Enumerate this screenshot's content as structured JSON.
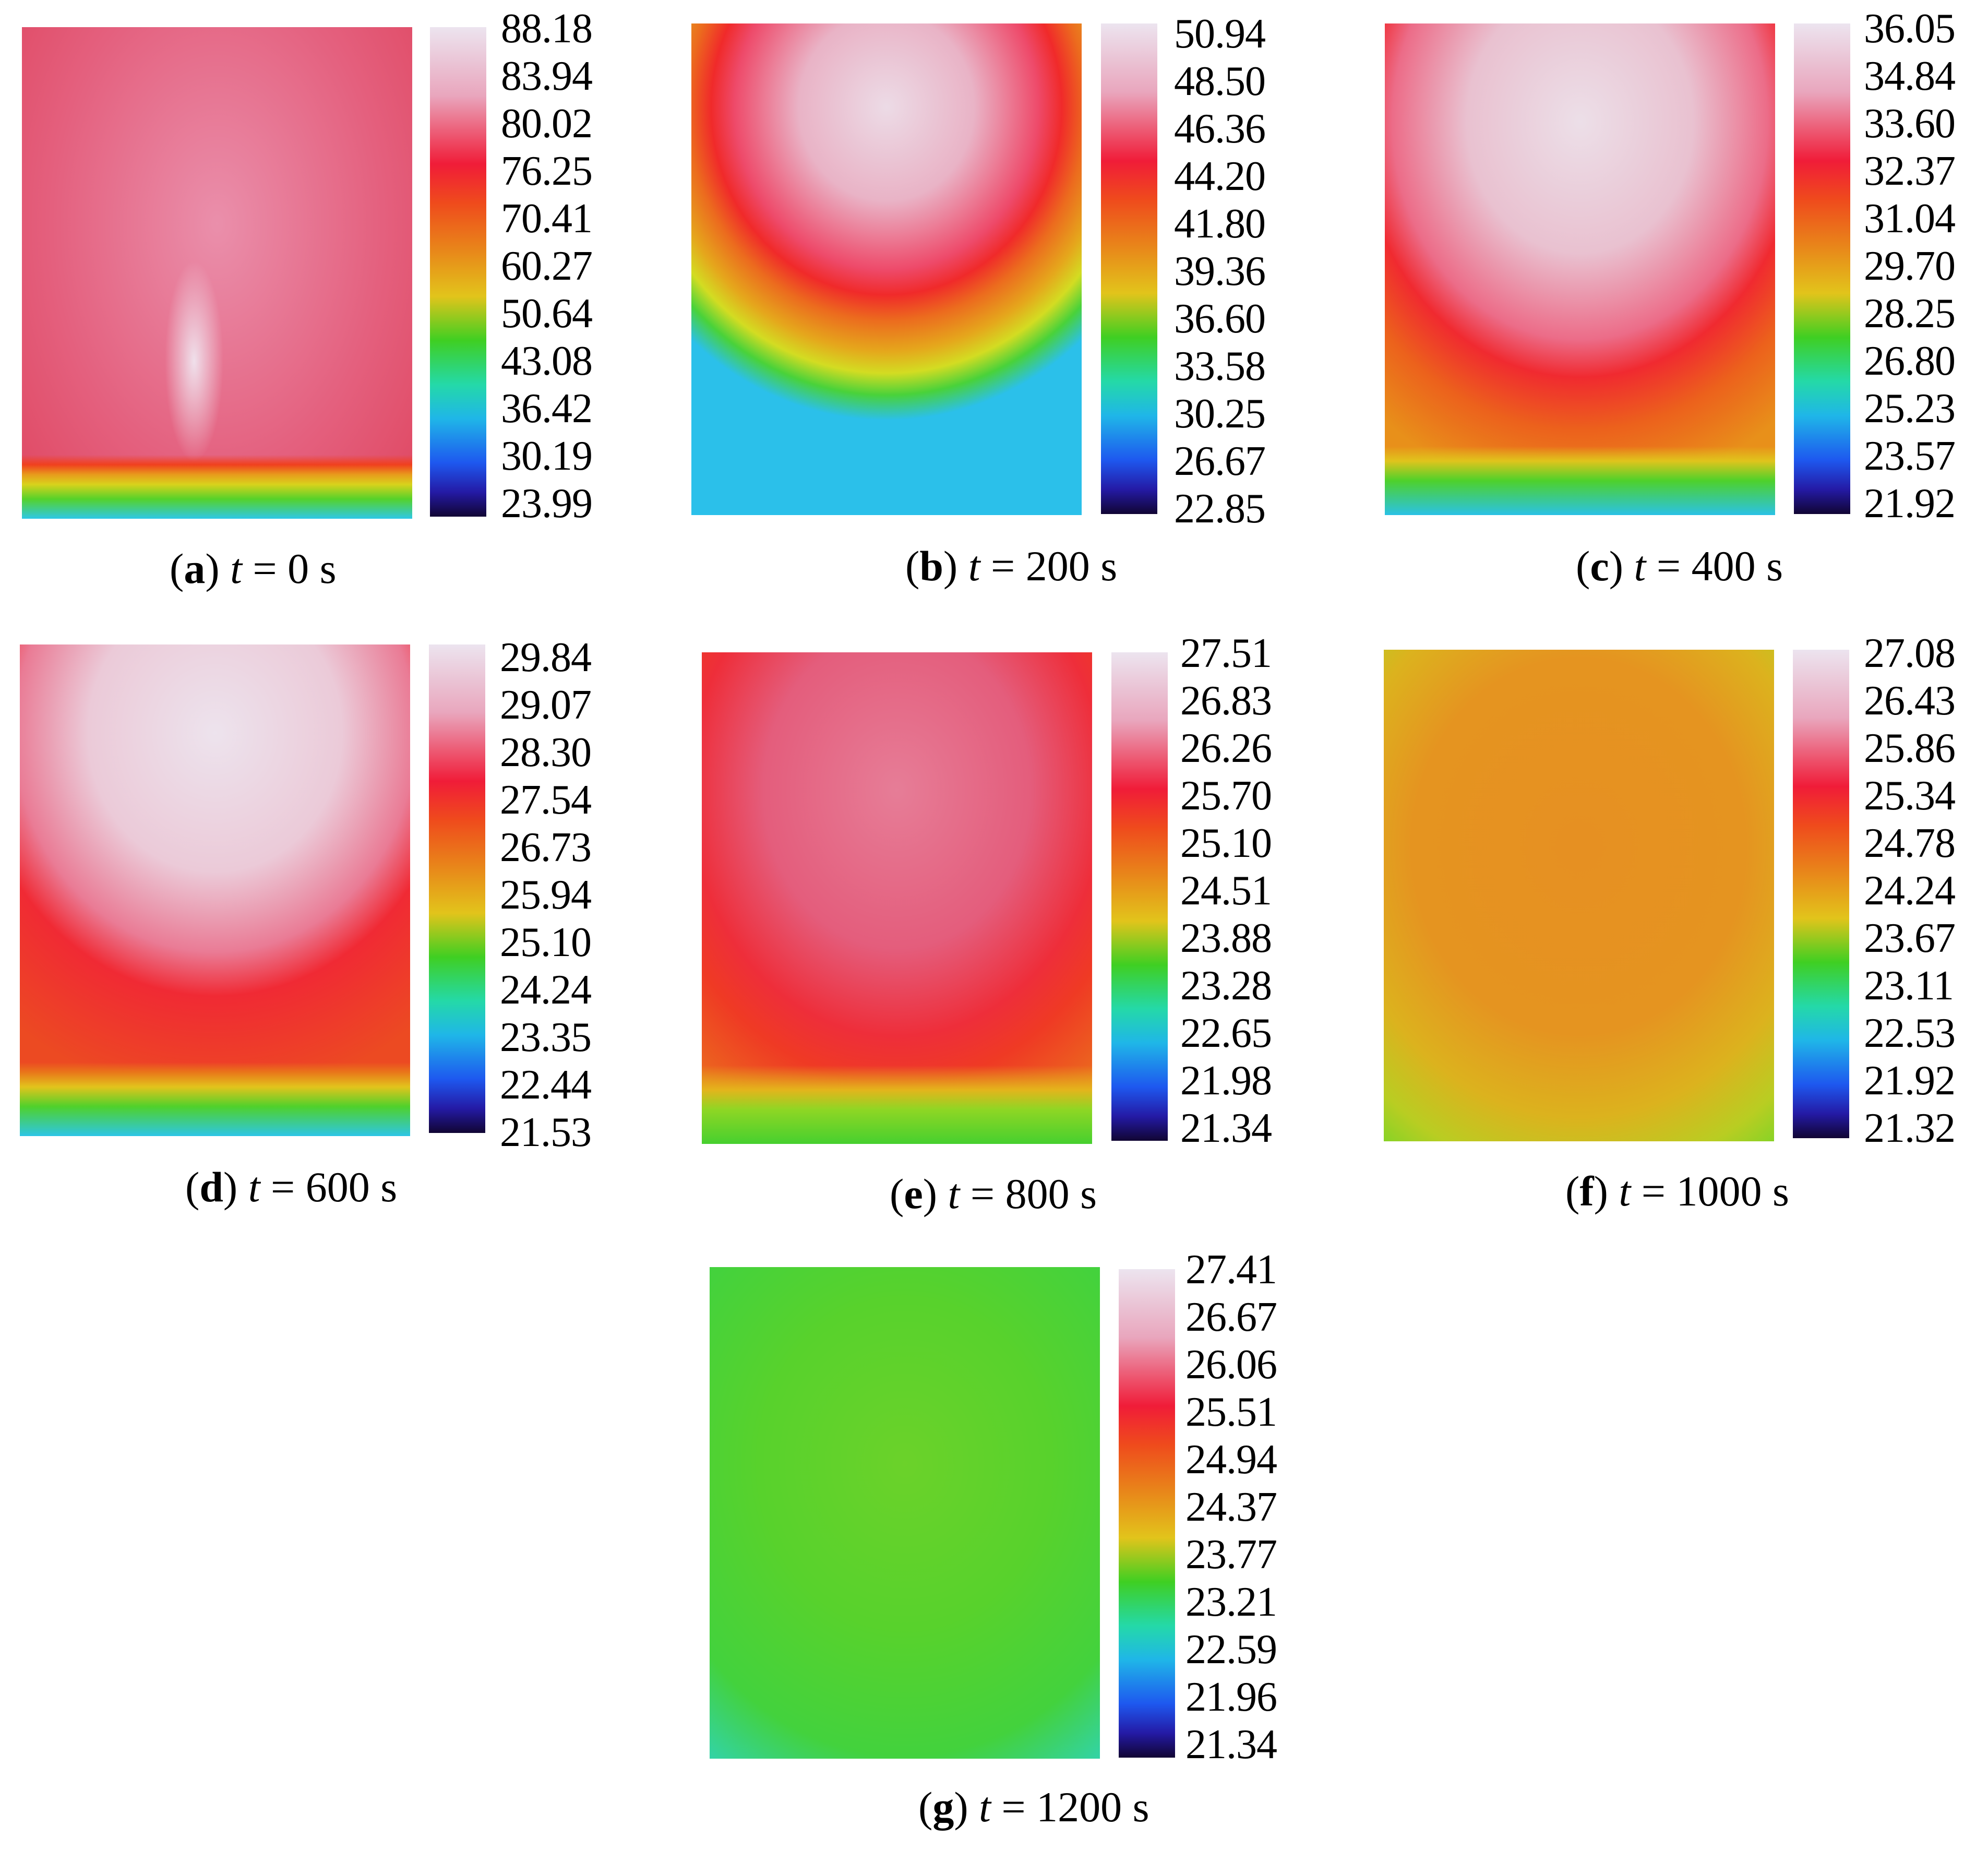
{
  "panels": [
    {
      "id": "a",
      "letter": "a",
      "time": "0",
      "scale": [
        "88.18",
        "83.94",
        "80.02",
        "76.25",
        "70.41",
        "60.27",
        "50.64",
        "43.08",
        "36.42",
        "30.19",
        "23.99"
      ]
    },
    {
      "id": "b",
      "letter": "b",
      "time": "200",
      "scale": [
        "50.94",
        "48.50",
        "46.36",
        "44.20",
        "41.80",
        "39.36",
        "36.60",
        "33.58",
        "30.25",
        "26.67",
        "22.85"
      ]
    },
    {
      "id": "c",
      "letter": "c",
      "time": "400",
      "scale": [
        "36.05",
        "34.84",
        "33.60",
        "32.37",
        "31.04",
        "29.70",
        "28.25",
        "26.80",
        "25.23",
        "23.57",
        "21.92"
      ]
    },
    {
      "id": "d",
      "letter": "d",
      "time": "600",
      "scale": [
        "29.84",
        "29.07",
        "28.30",
        "27.54",
        "26.73",
        "25.94",
        "25.10",
        "24.24",
        "23.35",
        "22.44",
        "21.53"
      ]
    },
    {
      "id": "e",
      "letter": "e",
      "time": "800",
      "scale": [
        "27.51",
        "26.83",
        "26.26",
        "25.70",
        "25.10",
        "24.51",
        "23.88",
        "23.28",
        "22.65",
        "21.98",
        "21.34"
      ]
    },
    {
      "id": "f",
      "letter": "f",
      "time": "1000",
      "scale": [
        "27.08",
        "26.43",
        "25.86",
        "25.34",
        "24.78",
        "24.24",
        "23.67",
        "23.11",
        "22.53",
        "21.92",
        "21.32"
      ]
    },
    {
      "id": "g",
      "letter": "g",
      "time": "1200",
      "scale": [
        "27.41",
        "26.67",
        "26.06",
        "25.51",
        "24.94",
        "24.37",
        "23.77",
        "23.21",
        "22.59",
        "21.96",
        "21.34"
      ]
    }
  ],
  "caption_var": "t",
  "caption_eq": "=",
  "caption_unit": "s"
}
